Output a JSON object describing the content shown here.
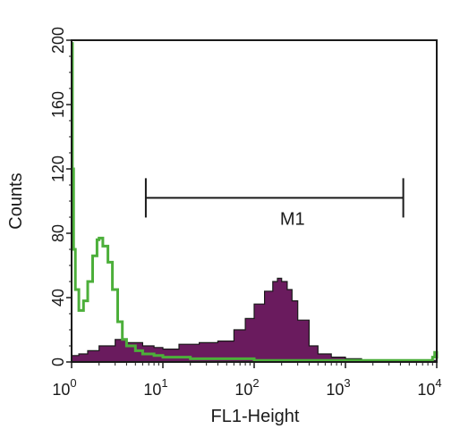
{
  "chart_data": {
    "type": "area",
    "xlabel": "FL1-Height",
    "ylabel": "Counts",
    "x_scale": "log",
    "xlim": [
      1,
      10000
    ],
    "ylim": [
      0,
      200
    ],
    "y_ticks": [
      "0",
      "40",
      "80",
      "120",
      "160",
      "200"
    ],
    "x_ticks": [
      {
        "base": "10",
        "exp": "0",
        "value": 1
      },
      {
        "base": "10",
        "exp": "1",
        "value": 10
      },
      {
        "base": "10",
        "exp": "2",
        "value": 100
      },
      {
        "base": "10",
        "exp": "3",
        "value": 1000
      },
      {
        "base": "10",
        "exp": "4",
        "value": 10000
      }
    ],
    "gate": {
      "label": "M1",
      "x_start": 6.5,
      "x_end": 4300,
      "y": 102
    },
    "series": [
      {
        "kind": "filled-histogram",
        "color": "#6a1b5e",
        "x": [
          1.0,
          1.2,
          1.5,
          2.0,
          3.0,
          4.0,
          6.0,
          8.0,
          10,
          15,
          25,
          40,
          60,
          80,
          100,
          130,
          160,
          180,
          200,
          230,
          260,
          300,
          400,
          500,
          700,
          1000,
          1500,
          2500,
          5000,
          10000
        ],
        "values": [
          4,
          5,
          7,
          10,
          14,
          12,
          10,
          9,
          8,
          11,
          12,
          13,
          20,
          27,
          36,
          44,
          50,
          52,
          50,
          45,
          38,
          26,
          10,
          5,
          3,
          2,
          1,
          1,
          1,
          1
        ]
      },
      {
        "kind": "outline-histogram",
        "color": "#4caf3a",
        "x": [
          1.0,
          1.02,
          1.05,
          1.1,
          1.2,
          1.35,
          1.5,
          1.7,
          1.9,
          2.0,
          2.2,
          2.5,
          2.8,
          3.2,
          3.6,
          4.0,
          5.0,
          6.0,
          8.0,
          10,
          20,
          50,
          100,
          300,
          1000,
          3000,
          9000,
          9500,
          10000
        ],
        "values": [
          198,
          120,
          70,
          45,
          32,
          38,
          50,
          66,
          76,
          77,
          72,
          62,
          45,
          25,
          14,
          10,
          7,
          5,
          4,
          3,
          2,
          2,
          1,
          1,
          1,
          1,
          3,
          6,
          2
        ]
      }
    ]
  }
}
